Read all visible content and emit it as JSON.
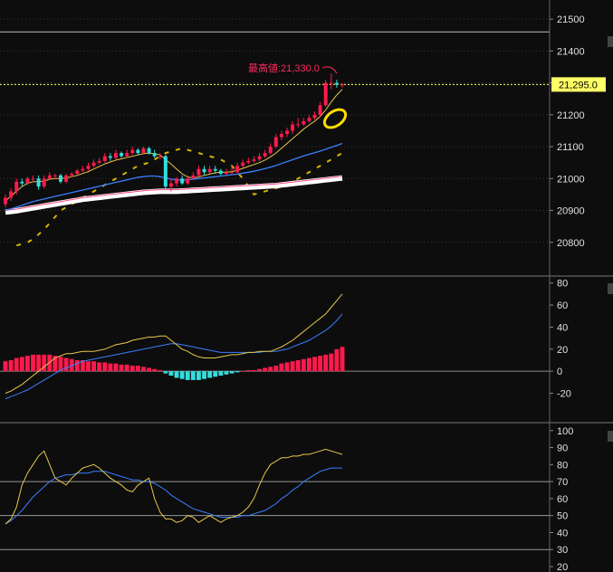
{
  "chart_data": [
    {
      "panel": "price",
      "type": "candlestick",
      "x": [
        1,
        2,
        3,
        4,
        5,
        6,
        7,
        8,
        9,
        10,
        11,
        12,
        13,
        14,
        15,
        16,
        17,
        18,
        19,
        20,
        21,
        22,
        23,
        24,
        25,
        26,
        27,
        28,
        29,
        30,
        31,
        32,
        33,
        34,
        35,
        36,
        37,
        38,
        39,
        40,
        41,
        42,
        43,
        44,
        45,
        46,
        47,
        48,
        49,
        50,
        51,
        52,
        53,
        54,
        55,
        56,
        57,
        58,
        59,
        60,
        61,
        62
      ],
      "open": [
        20920,
        20940,
        20960,
        20990,
        20985,
        21000,
        21000,
        20975,
        21000,
        21010,
        21010,
        20990,
        21010,
        21015,
        21025,
        21030,
        21040,
        21050,
        21055,
        21070,
        21065,
        21080,
        21070,
        21080,
        21090,
        21080,
        21095,
        21080,
        21070,
        21070,
        20975,
        20985,
        21000,
        20985,
        21000,
        21010,
        21030,
        21020,
        21030,
        21025,
        21015,
        21020,
        21020,
        21040,
        21050,
        21055,
        21060,
        21070,
        21080,
        21100,
        21130,
        21140,
        21150,
        21170,
        21170,
        21180,
        21190,
        21200,
        21230,
        21300,
        21300,
        21295
      ],
      "close": [
        20940,
        20960,
        20990,
        20985,
        21000,
        21000,
        20975,
        21000,
        21010,
        21010,
        20990,
        21010,
        21015,
        21025,
        21030,
        21040,
        21050,
        21055,
        21070,
        21065,
        21080,
        21070,
        21080,
        21090,
        21080,
        21095,
        21080,
        21070,
        21070,
        20975,
        20985,
        21000,
        20985,
        21000,
        21010,
        21030,
        21020,
        21030,
        21025,
        21015,
        21020,
        21020,
        21040,
        21050,
        21055,
        21060,
        21070,
        21080,
        21100,
        21130,
        21140,
        21150,
        21170,
        21170,
        21180,
        21190,
        21200,
        21230,
        21300,
        21300,
        21295,
        21295
      ],
      "high": [
        20950,
        20970,
        21000,
        21000,
        21005,
        21010,
        21010,
        21010,
        21020,
        21015,
        21015,
        21015,
        21020,
        21030,
        21040,
        21050,
        21060,
        21065,
        21080,
        21080,
        21090,
        21085,
        21090,
        21100,
        21095,
        21100,
        21100,
        21090,
        21080,
        21075,
        21000,
        21005,
        21010,
        21010,
        21020,
        21040,
        21040,
        21040,
        21040,
        21030,
        21030,
        21040,
        21050,
        21060,
        21065,
        21070,
        21080,
        21090,
        21110,
        21140,
        21150,
        21160,
        21180,
        21190,
        21190,
        21200,
        21210,
        21240,
        21310,
        21330,
        21310,
        21300
      ],
      "low": [
        20910,
        20930,
        20950,
        20975,
        20980,
        20990,
        20965,
        20970,
        20995,
        21000,
        20985,
        20985,
        21005,
        21010,
        21020,
        21025,
        21035,
        21045,
        21050,
        21055,
        21060,
        21065,
        21065,
        21075,
        21075,
        21075,
        21075,
        21065,
        21060,
        20965,
        20960,
        20975,
        20980,
        20980,
        20995,
        21005,
        21010,
        21015,
        21015,
        21010,
        21010,
        21015,
        21015,
        21035,
        21045,
        21050,
        21055,
        21065,
        21075,
        21095,
        21120,
        21130,
        21140,
        21160,
        21165,
        21175,
        21185,
        21195,
        21225,
        21280,
        21285,
        21285
      ],
      "ma_short": [
        20930,
        20945,
        20960,
        20975,
        20985,
        20990,
        20990,
        20992,
        20998,
        21000,
        21000,
        21002,
        21006,
        21010,
        21016,
        21022,
        21030,
        21038,
        21046,
        21052,
        21058,
        21062,
        21066,
        21070,
        21074,
        21078,
        21080,
        21078,
        21074,
        21060,
        21045,
        21030,
        21015,
        21005,
        21002,
        21005,
        21010,
        21014,
        21018,
        21020,
        21020,
        21022,
        21026,
        21032,
        21038,
        21044,
        21050,
        21058,
        21068,
        21080,
        21095,
        21110,
        21125,
        21140,
        21155,
        21168,
        21180,
        21195,
        21215,
        21240,
        21262,
        21280
      ],
      "ma_mid": [
        20900,
        20905,
        20910,
        20916,
        20922,
        20928,
        20932,
        20936,
        20940,
        20944,
        20948,
        20952,
        20956,
        20960,
        20964,
        20968,
        20972,
        20976,
        20980,
        20984,
        20988,
        20992,
        20996,
        21000,
        21004,
        21006,
        21008,
        21008,
        21006,
        21002,
        20998,
        20996,
        20995,
        20996,
        20998,
        21000,
        21002,
        21004,
        21006,
        21008,
        21010,
        21012,
        21014,
        21017,
        21020,
        21023,
        21027,
        21031,
        21036,
        21041,
        21047,
        21053,
        21059,
        21065,
        21071,
        21076,
        21081,
        21086,
        21092,
        21098,
        21104,
        21110
      ],
      "ma_long": [
        20895,
        20897,
        20899,
        20902,
        20905,
        20908,
        20911,
        20914,
        20917,
        20920,
        20923,
        20926,
        20929,
        20932,
        20935,
        20937,
        20939,
        20941,
        20943,
        20945,
        20947,
        20949,
        20951,
        20953,
        20955,
        20957,
        20958,
        20959,
        20960,
        20960,
        20960,
        20960,
        20961,
        20962,
        20963,
        20964,
        20965,
        20966,
        20967,
        20968,
        20969,
        20970,
        20971,
        20972,
        20973,
        20974,
        20975,
        20976,
        20977,
        20978,
        20980,
        20982,
        20984,
        20986,
        20988,
        20990,
        20992,
        20994,
        20996,
        20998,
        21000,
        21002
      ],
      "ichimoku_lag": [
        20790,
        20795,
        20800,
        20810,
        20825,
        20840,
        20860,
        20880,
        20900,
        20910,
        20920,
        20930,
        20940,
        20950,
        20960,
        20970,
        20980,
        20990,
        21000,
        21010,
        21020,
        21030,
        21040,
        21045,
        21050,
        21060,
        21070,
        21080,
        21085,
        21090,
        21095,
        21090,
        21085,
        21080,
        21075,
        21070,
        21065,
        21060,
        21050,
        21040,
        21020,
        21000,
        20975,
        20950,
        20955,
        20960,
        20965,
        20970,
        20975,
        20980,
        20990,
        21000,
        21010,
        21020,
        21030,
        21040,
        21050,
        21060,
        21070,
        21080
      ],
      "y_ticks": [
        20800,
        20900,
        21000,
        21100,
        21200,
        21300,
        21400,
        21500
      ],
      "y_tick_labels": [
        "20800",
        "20900",
        "21000",
        "21100",
        "21200",
        "21300",
        "21400",
        "21500"
      ],
      "ylim": [
        20700,
        21560
      ],
      "current_price_label": "21,295.0",
      "annotation": "最高値:21,330.0",
      "annotation_value": 21330,
      "current_price": 21295,
      "resistance": 21460
    },
    {
      "panel": "macd",
      "type": "bar+line",
      "x": [
        1,
        2,
        3,
        4,
        5,
        6,
        7,
        8,
        9,
        10,
        11,
        12,
        13,
        14,
        15,
        16,
        17,
        18,
        19,
        20,
        21,
        22,
        23,
        24,
        25,
        26,
        27,
        28,
        29,
        30,
        31,
        32,
        33,
        34,
        35,
        36,
        37,
        38,
        39,
        40,
        41,
        42,
        43,
        44,
        45,
        46,
        47,
        48,
        49,
        50,
        51,
        52,
        53,
        54,
        55,
        56,
        57,
        58,
        59,
        60,
        61,
        62
      ],
      "histogram": [
        9,
        10,
        12,
        13,
        14,
        15,
        15,
        15,
        15,
        14,
        13,
        12,
        11,
        10,
        10,
        9,
        9,
        8,
        8,
        7,
        7,
        6,
        6,
        5,
        5,
        4,
        3,
        2,
        1,
        -2,
        -4,
        -6,
        -7,
        -8,
        -8,
        -8,
        -7,
        -6,
        -5,
        -4,
        -3,
        -2,
        -1,
        0,
        1,
        1,
        2,
        3,
        4,
        5,
        7,
        8,
        9,
        10,
        11,
        12,
        13,
        14,
        15,
        16,
        20,
        22
      ],
      "macd": [
        -20,
        -18,
        -15,
        -12,
        -8,
        -4,
        0,
        4,
        8,
        12,
        14,
        16,
        16,
        17,
        18,
        18,
        18,
        19,
        20,
        22,
        24,
        25,
        26,
        28,
        29,
        30,
        31,
        31,
        32,
        32,
        28,
        24,
        20,
        18,
        15,
        13,
        12,
        12,
        12,
        13,
        14,
        15,
        15,
        16,
        17,
        17,
        18,
        18,
        18,
        20,
        22,
        25,
        28,
        32,
        36,
        40,
        44,
        48,
        52,
        58,
        64,
        70
      ],
      "signal": [
        -25,
        -23,
        -21,
        -19,
        -17,
        -14,
        -11,
        -8,
        -5,
        -2,
        1,
        3,
        5,
        7,
        9,
        10,
        11,
        12,
        13,
        14,
        15,
        16,
        17,
        18,
        19,
        20,
        21,
        22,
        23,
        24,
        25,
        25,
        24,
        23,
        22,
        21,
        20,
        19,
        18,
        17,
        17,
        17,
        17,
        17,
        17,
        17,
        17,
        18,
        18,
        18,
        19,
        20,
        22,
        24,
        26,
        28,
        31,
        34,
        37,
        41,
        46,
        52
      ],
      "y_ticks": [
        -20,
        0,
        20,
        40,
        60,
        80
      ],
      "y_tick_labels": [
        "-20",
        "0",
        "20",
        "40",
        "60",
        "80"
      ],
      "ylim": [
        -45,
        83
      ]
    },
    {
      "panel": "rsi",
      "type": "line",
      "x": [
        1,
        2,
        3,
        4,
        5,
        6,
        7,
        8,
        9,
        10,
        11,
        12,
        13,
        14,
        15,
        16,
        17,
        18,
        19,
        20,
        21,
        22,
        23,
        24,
        25,
        26,
        27,
        28,
        29,
        30,
        31,
        32,
        33,
        34,
        35,
        36,
        37,
        38,
        39,
        40,
        41,
        42,
        43,
        44,
        45,
        46,
        47,
        48,
        49,
        50,
        51,
        52,
        53,
        54,
        55,
        56,
        57,
        58,
        59,
        60,
        61,
        62
      ],
      "rsi": [
        45,
        48,
        55,
        68,
        75,
        80,
        85,
        88,
        80,
        72,
        70,
        68,
        72,
        75,
        78,
        79,
        80,
        78,
        75,
        72,
        70,
        68,
        65,
        64,
        68,
        70,
        72,
        60,
        52,
        48,
        48,
        46,
        47,
        50,
        49,
        46,
        48,
        50,
        48,
        46,
        48,
        49,
        50,
        52,
        55,
        60,
        68,
        75,
        80,
        82,
        84,
        84,
        85,
        85,
        86,
        86,
        87,
        88,
        89,
        88,
        87,
        86
      ],
      "rsi_signal": [
        45,
        47,
        50,
        53,
        57,
        61,
        64,
        67,
        70,
        72,
        73,
        74,
        74,
        75,
        75,
        75,
        76,
        76,
        76,
        75,
        74,
        73,
        72,
        71,
        71,
        70,
        70,
        69,
        67,
        65,
        62,
        60,
        58,
        56,
        54,
        53,
        52,
        51,
        50,
        49,
        49,
        49,
        49,
        50,
        50,
        51,
        52,
        53,
        55,
        57,
        60,
        62,
        65,
        67,
        70,
        72,
        74,
        76,
        77,
        78,
        78,
        78
      ],
      "y_ticks": [
        20,
        30,
        40,
        50,
        60,
        70,
        80,
        90,
        100
      ],
      "y_tick_labels": [
        "20",
        "30",
        "40",
        "50",
        "60",
        "70",
        "80",
        "90",
        "100"
      ],
      "ylim": [
        20,
        102
      ],
      "ref_lines": [
        30,
        50,
        70
      ]
    }
  ],
  "colors": {
    "background": "#0d0d0d",
    "up": "#ff1a4d",
    "down": "#33dddd",
    "ma_short": "#e8c84a",
    "ma_mid": "#3a7fff",
    "ma_long": "#ffffff",
    "lag": "#d4b400",
    "histogram_pos": "#ff1a4d",
    "histogram_neg": "#33dddd",
    "current_price_bg": "#ffff66",
    "annotation": "#ff2a5a",
    "highlight": "#ffdd00"
  }
}
